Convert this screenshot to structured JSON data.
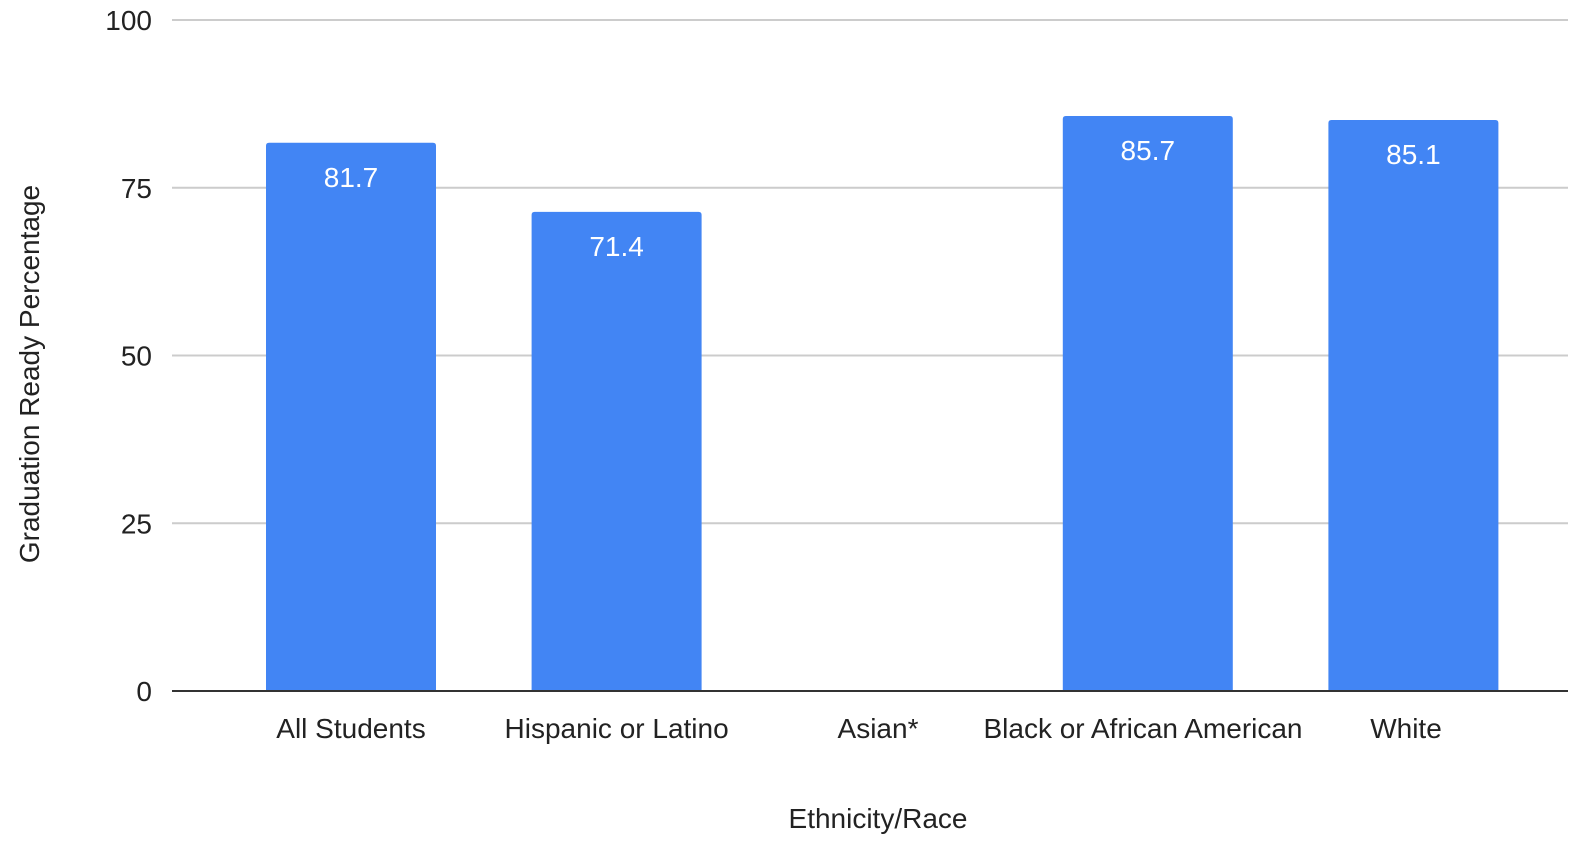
{
  "chart_data": {
    "type": "bar",
    "categories": [
      "All Students",
      "Hispanic or Latino",
      "Asian*",
      "Black or African American",
      "White"
    ],
    "values": [
      81.7,
      71.4,
      null,
      85.7,
      85.1
    ],
    "data_labels": [
      "81.7",
      "71.4",
      "",
      "85.7",
      "85.1"
    ],
    "xlabel": "Ethnicity/Race",
    "ylabel": "Graduation Ready Percentage",
    "ylim": [
      0,
      100
    ],
    "yticks": [
      0,
      25,
      50,
      75,
      100
    ],
    "grid": true,
    "legend": "none",
    "colors": {
      "bar": "#4285f4",
      "grid": "#cccccc",
      "baseline": "#333333",
      "text": "#222222",
      "data_label": "#ffffff"
    }
  }
}
